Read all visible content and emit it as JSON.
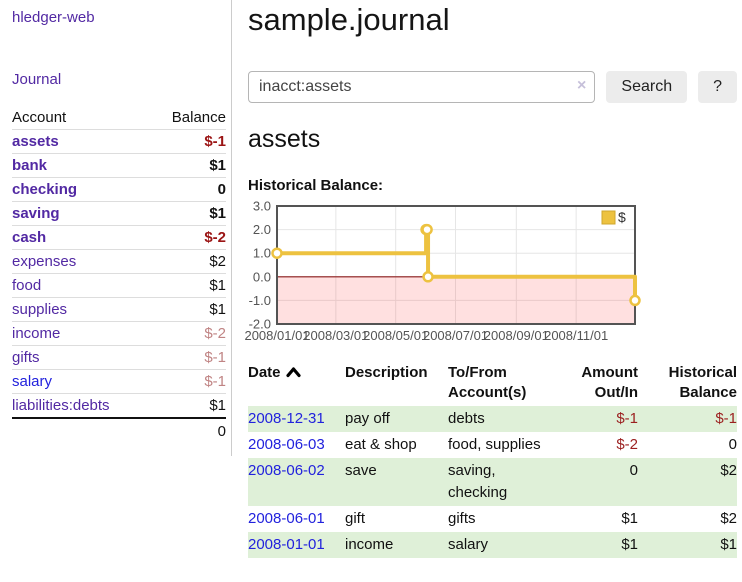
{
  "app": {
    "brand": "hledger-web"
  },
  "nav": {
    "journal": "Journal"
  },
  "sidebar": {
    "header": {
      "account": "Account",
      "balance": "Balance"
    },
    "rows": [
      {
        "name": "assets",
        "value": "$-1",
        "indent": 1,
        "bold": true,
        "value_class": "neg-strong",
        "link_color": "purple"
      },
      {
        "name": "bank",
        "value": "$1",
        "indent": 2,
        "bold": true,
        "value_class": "num",
        "link_color": "purple"
      },
      {
        "name": "checking",
        "value": "0",
        "indent": 3,
        "bold": true,
        "value_class": "num",
        "link_color": "purple"
      },
      {
        "name": "saving",
        "value": "$1",
        "indent": 3,
        "bold": true,
        "value_class": "num",
        "link_color": "purple"
      },
      {
        "name": "cash",
        "value": "$-2",
        "indent": 2,
        "bold": true,
        "value_class": "neg-strong",
        "link_color": "purple"
      },
      {
        "name": "expenses",
        "value": "$2",
        "indent": 1,
        "bold": false,
        "value_class": "num",
        "link_color": "purple"
      },
      {
        "name": "food",
        "value": "$1",
        "indent": 2,
        "bold": false,
        "value_class": "num",
        "link_color": "purple"
      },
      {
        "name": "supplies",
        "value": "$1",
        "indent": 2,
        "bold": false,
        "value_class": "num",
        "link_color": "purple"
      },
      {
        "name": "income",
        "value": "$-2",
        "indent": 1,
        "bold": false,
        "value_class": "neg-soft",
        "link_color": "purple"
      },
      {
        "name": "gifts",
        "value": "$-1",
        "indent": 2,
        "bold": false,
        "value_class": "neg-soft",
        "link_color": "purple"
      },
      {
        "name": "salary",
        "value": "$-1",
        "indent": 2,
        "bold": false,
        "value_class": "neg-soft",
        "link_color": "blue"
      },
      {
        "name": "liabilities:debts",
        "value": "$1",
        "indent": 1,
        "bold": false,
        "value_class": "num",
        "link_color": "purple"
      }
    ],
    "total": "0"
  },
  "header": {
    "title": "sample.journal"
  },
  "search": {
    "query": "inacct:assets",
    "clear": "×",
    "button_label": "Search",
    "help_label": "?"
  },
  "account_page": {
    "heading": "assets",
    "chart_label": "Historical Balance:"
  },
  "chart_data": {
    "type": "line",
    "title": "Historical Balance:",
    "series": [
      {
        "name": "$",
        "color": "#edc240",
        "step": true,
        "points": [
          [
            "2008-01-01",
            1
          ],
          [
            "2008-06-01",
            2
          ],
          [
            "2008-06-02",
            2
          ],
          [
            "2008-06-03",
            0
          ],
          [
            "2008-12-31",
            -1
          ]
        ]
      }
    ],
    "xrange": [
      "2008-01-01",
      "2008-12-31"
    ],
    "ylim": [
      -2,
      3
    ],
    "yticks": [
      {
        "v": 3,
        "label": "3.0"
      },
      {
        "v": 2,
        "label": "2.0"
      },
      {
        "v": 1,
        "label": "1.0"
      },
      {
        "v": 0,
        "label": "0.0"
      },
      {
        "v": -1,
        "label": "-1.0"
      },
      {
        "v": -2,
        "label": "-2.0"
      }
    ],
    "xticks": [
      {
        "t": "2008-01-01",
        "label": "2008/01/01"
      },
      {
        "t": "2008-03-01",
        "label": "2008/03/01"
      },
      {
        "t": "2008-05-01",
        "label": "2008/05/01"
      },
      {
        "t": "2008-07-01",
        "label": "2008/07/01"
      },
      {
        "t": "2008-09-01",
        "label": "2008/09/01"
      },
      {
        "t": "2008-11-01",
        "label": "2008/11/01"
      }
    ],
    "grid": true,
    "negative_region_fill": "rgba(255,0,0,0.12)",
    "zero_line_color": "#8b1a1a",
    "border_color": "#545454",
    "gridline_color": "#e6e6e6",
    "legend": {
      "label": "$",
      "position": "top-right",
      "swatch_color": "#edc240",
      "swatch_border": "#cfa72e"
    }
  },
  "register": {
    "columns": [
      {
        "label": "Date",
        "sort_icon": "chevron-up-icon",
        "sortable": true
      },
      {
        "label": "Description"
      },
      {
        "label": "To/From Account(s)"
      },
      {
        "label": "Amount Out/In"
      },
      {
        "label": "Historical Balance"
      }
    ],
    "rows": [
      {
        "date": "2008-12-31",
        "description": "pay off",
        "accounts": "debts",
        "amount": "$-1",
        "amount_negative": true,
        "balance": "$-1",
        "balance_negative": true,
        "shaded": true
      },
      {
        "date": "2008-06-03",
        "description": "eat & shop",
        "accounts": "food, supplies",
        "amount": "$-2",
        "amount_negative": true,
        "balance": "0",
        "balance_negative": false,
        "shaded": false
      },
      {
        "date": "2008-06-02",
        "description": "save",
        "accounts": "saving, checking",
        "amount": "0",
        "amount_negative": false,
        "balance": "$2",
        "balance_negative": false,
        "shaded": true
      },
      {
        "date": "2008-06-01",
        "description": "gift",
        "accounts": "gifts",
        "amount": "$1",
        "amount_negative": false,
        "balance": "$2",
        "balance_negative": false,
        "shaded": false
      },
      {
        "date": "2008-01-01",
        "description": "income",
        "accounts": "salary",
        "amount": "$1",
        "amount_negative": false,
        "balance": "$1",
        "balance_negative": false,
        "shaded": true
      }
    ]
  },
  "colors": {
    "link_purple": "#5229a3",
    "link_blue": "#2222dd",
    "negative_strong": "#9b1414",
    "negative_soft": "#c08484",
    "row_shade_green": "#dff0d8",
    "series_yellow": "#edc240"
  }
}
